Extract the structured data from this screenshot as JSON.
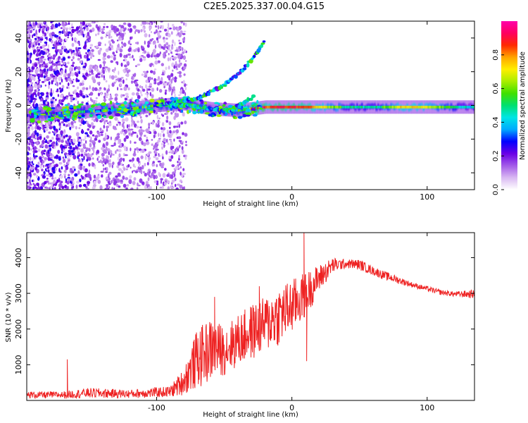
{
  "title": "C2E5.2025.337.00.04.G15",
  "chart_data": [
    {
      "type": "heatmap",
      "name": "spectrogram",
      "xlabel": "Height of straight line (km)",
      "ylabel": "Frequency (Hz)",
      "xlim": [
        -196,
        135
      ],
      "ylim": [
        -50,
        50
      ],
      "xticks": [
        -100,
        0,
        100
      ],
      "yticks": [
        -40,
        -20,
        0,
        20,
        40
      ],
      "colorbar": {
        "label": "Normalized spectral amplitude",
        "range": [
          0,
          1
        ],
        "ticks": [
          0.0,
          0.2,
          0.4,
          0.6,
          0.8
        ],
        "colormap": [
          "#ffffff",
          "#d9b8f2",
          "#a35ae8",
          "#6a00e6",
          "#0000ff",
          "#00aaff",
          "#00e5e5",
          "#00e070",
          "#40e000",
          "#aaee00",
          "#ffee00",
          "#ffa500",
          "#ff2a00",
          "#ff0060",
          "#ff00aa"
        ]
      },
      "main_band": [
        {
          "x": -196,
          "f": -6,
          "amp": 0.35
        },
        {
          "x": -180,
          "f": -5,
          "amp": 0.4
        },
        {
          "x": -160,
          "f": -4,
          "amp": 0.45
        },
        {
          "x": -140,
          "f": -3,
          "amp": 0.45
        },
        {
          "x": -120,
          "f": -2,
          "amp": 0.5
        },
        {
          "x": -100,
          "f": 0,
          "amp": 0.45
        },
        {
          "x": -80,
          "f": 1,
          "amp": 0.4
        },
        {
          "x": -60,
          "f": -2,
          "amp": 0.45
        },
        {
          "x": -40,
          "f": -3,
          "amp": 0.55
        },
        {
          "x": -20,
          "f": -1,
          "amp": 0.85
        },
        {
          "x": 0,
          "f": -1,
          "amp": 0.9
        },
        {
          "x": 20,
          "f": -1,
          "amp": 0.75
        },
        {
          "x": 40,
          "f": -1,
          "amp": 0.5
        },
        {
          "x": 60,
          "f": -1,
          "amp": 0.45
        },
        {
          "x": 80,
          "f": -1,
          "amp": 0.75
        },
        {
          "x": 100,
          "f": -1,
          "amp": 0.7
        },
        {
          "x": 120,
          "f": -1,
          "amp": 0.5
        },
        {
          "x": 135,
          "f": -1,
          "amp": 0.4
        }
      ],
      "upper_branch": [
        {
          "x": -95,
          "f": 1
        },
        {
          "x": -70,
          "f": 4
        },
        {
          "x": -50,
          "f": 12
        },
        {
          "x": -35,
          "f": 22
        },
        {
          "x": -25,
          "f": 32
        },
        {
          "x": -20,
          "f": 38
        }
      ],
      "lower_branch": [
        {
          "x": -90,
          "f": 0
        },
        {
          "x": -75,
          "f": 0
        },
        {
          "x": -60,
          "f": -2
        },
        {
          "x": -45,
          "f": -3
        },
        {
          "x": -35,
          "f": 2
        },
        {
          "x": -28,
          "f": 5
        }
      ]
    },
    {
      "type": "line",
      "name": "snr",
      "xlabel": "Height of straight line (km)",
      "ylabel": "SNR (10 * v/v)",
      "xlim": [
        -196,
        135
      ],
      "ylim": [
        0,
        4700
      ],
      "xticks": [
        -100,
        0,
        100
      ],
      "yticks": [
        1000,
        2000,
        3000,
        4000
      ],
      "color": "#ee2222",
      "envelope": {
        "x": [
          -196,
          -170,
          -150,
          -120,
          -90,
          -80,
          -70,
          -60,
          -50,
          -40,
          -30,
          -20,
          -10,
          0,
          10,
          20,
          30,
          40,
          50,
          60,
          70,
          80,
          90,
          100,
          110,
          120,
          135
        ],
        "lo": [
          50,
          50,
          60,
          60,
          80,
          150,
          300,
          500,
          700,
          900,
          1100,
          1300,
          1500,
          1800,
          2300,
          3000,
          3550,
          3700,
          3650,
          3500,
          3350,
          3250,
          3150,
          3050,
          2950,
          2900,
          2850
        ],
        "hi": [
          250,
          250,
          350,
          300,
          400,
          900,
          2000,
          2300,
          2100,
          2400,
          2700,
          2900,
          3200,
          3400,
          3600,
          3800,
          4000,
          3950,
          3950,
          3750,
          3600,
          3450,
          3300,
          3200,
          3100,
          3050,
          3100
        ]
      },
      "spikes": [
        {
          "x": -166,
          "y": 1150
        },
        {
          "x": 9,
          "y": 4700
        },
        {
          "x": 11,
          "y": 1100
        },
        {
          "x": -57,
          "y": 2900
        },
        {
          "x": -24,
          "y": 3200
        }
      ]
    }
  ]
}
